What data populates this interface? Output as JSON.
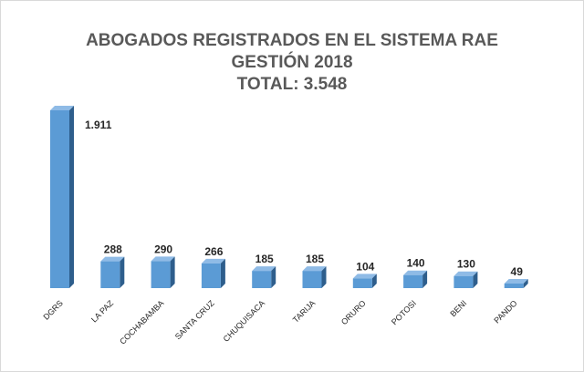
{
  "chart_data": {
    "type": "bar",
    "title": [
      "ABOGADOS REGISTRADOS EN EL SISTEMA RAE",
      "GESTIÓN 2018",
      "TOTAL: 3.548"
    ],
    "xlabel": "",
    "ylabel": "",
    "categories": [
      "DGRS",
      "LA PAZ",
      "COCHABAMBA",
      "SANTA CRUZ",
      "CHUQUISACA",
      "TARIJA",
      "ORURO",
      "POTOSI",
      "BENI",
      "PANDO"
    ],
    "values": [
      1911,
      288,
      290,
      266,
      185,
      185,
      104,
      140,
      130,
      49
    ],
    "value_labels": [
      "1.911",
      "288",
      "290",
      "266",
      "185",
      "185",
      "104",
      "140",
      "130",
      "49"
    ],
    "ylim": [
      0,
      1911
    ],
    "grid": false,
    "legend": "none",
    "style": "3d-column"
  },
  "colors": {
    "bar_front": "#5b9bd5",
    "bar_side": "#2e5e8c",
    "bar_top": "#8fbbe6",
    "title": "#595959",
    "labels": "#262626"
  }
}
